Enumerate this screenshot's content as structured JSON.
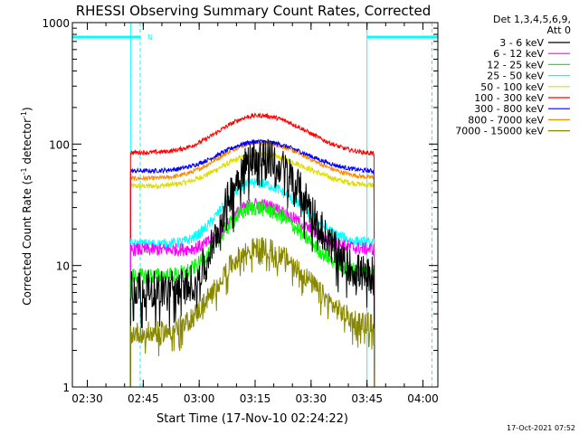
{
  "chart_data": {
    "type": "line",
    "title": "RHESSI Observing Summary Count Rates, Corrected",
    "xlabel": "Start Time (17-Nov-10 02:24:22)",
    "ylabel": "Corrected Count Rate (s",
    "ylabel_sup1": "-1",
    "ylabel_mid": " detector",
    "ylabel_sup2": "-1",
    "ylabel_end": ")",
    "y_scale": "log",
    "ylim": [
      1,
      1000
    ],
    "xlim_min": [
      146,
      244
    ],
    "x_tick_labels": [
      {
        "min": 150,
        "label": "02:30"
      },
      {
        "min": 165,
        "label": "02:45"
      },
      {
        "min": 180,
        "label": "03:00"
      },
      {
        "min": 195,
        "label": "03:15"
      },
      {
        "min": 210,
        "label": "03:30"
      },
      {
        "min": 225,
        "label": "03:45"
      },
      {
        "min": 240,
        "label": "04:00"
      }
    ],
    "y_tick_labels": [
      {
        "value": 1,
        "label": "1"
      },
      {
        "value": 10,
        "label": "10"
      },
      {
        "value": 100,
        "label": "100"
      },
      {
        "value": 1000,
        "label": "1000"
      }
    ],
    "legend_header": [
      "Det 1,3,4,5,6,9,",
      "Att 0"
    ],
    "series": [
      {
        "name": "3 - 6 keV",
        "color": "#000000",
        "base": 6.5,
        "peak": 80,
        "tpeak": 196,
        "rise": 6,
        "decay": 9,
        "noise": 0.35,
        "late": 8
      },
      {
        "name": "6 - 12 keV",
        "color": "#ff00ff",
        "base": 13.5,
        "peak": 32,
        "tpeak": 195,
        "rise": 6,
        "decay": 10,
        "noise": 0.12,
        "late": 13.5
      },
      {
        "name": "12 - 25 keV",
        "color": "#00ff00",
        "base": 8.2,
        "peak": 30,
        "tpeak": 195,
        "rise": 7,
        "decay": 10,
        "noise": 0.15,
        "late": 8.5
      },
      {
        "name": "25 - 50 keV",
        "color": "#00ffff",
        "base": 15,
        "peak": 48,
        "tpeak": 195,
        "rise": 7,
        "decay": 10,
        "noise": 0.1,
        "late": 15
      },
      {
        "name": "50 - 100 keV",
        "color": "#dddd00",
        "base": 45,
        "peak": 82,
        "tpeak": 196,
        "rise": 9,
        "decay": 11,
        "noise": 0.05,
        "late": 45
      },
      {
        "name": "100 - 300 keV",
        "color": "#ff0000",
        "base": 85,
        "peak": 172,
        "tpeak": 196,
        "rise": 9,
        "decay": 11,
        "noise": 0.04,
        "late": 82
      },
      {
        "name": "300 - 800 keV",
        "color": "#0000ff",
        "base": 60,
        "peak": 105,
        "tpeak": 196,
        "rise": 9,
        "decay": 11,
        "noise": 0.04,
        "late": 59
      },
      {
        "name": "800 - 7000 keV",
        "color": "#ff8800",
        "base": 52,
        "peak": 103,
        "tpeak": 196,
        "rise": 9,
        "decay": 11,
        "noise": 0.04,
        "late": 52
      },
      {
        "name": "7000 - 15000 keV",
        "color": "#888800",
        "base": 2.8,
        "peak": 14,
        "tpeak": 196,
        "rise": 8,
        "decay": 10,
        "noise": 0.2,
        "late": 3.2
      }
    ],
    "data_range_min": [
      161.6,
      227.0
    ],
    "night_markers": [
      {
        "from": 146,
        "to": 164.2,
        "label": "N"
      },
      {
        "from": 225,
        "to": 244,
        "label": ""
      }
    ],
    "vertical_lines": [
      {
        "min": 146,
        "style": "dashed"
      },
      {
        "min": 161.6,
        "style": "solid"
      },
      {
        "min": 164.2,
        "style": "dashed"
      },
      {
        "min": 225,
        "style": "solid"
      },
      {
        "min": 242.4,
        "style": "dashed"
      }
    ]
  },
  "footer": {
    "timestamp": "17-Oct-2021 07:52"
  }
}
